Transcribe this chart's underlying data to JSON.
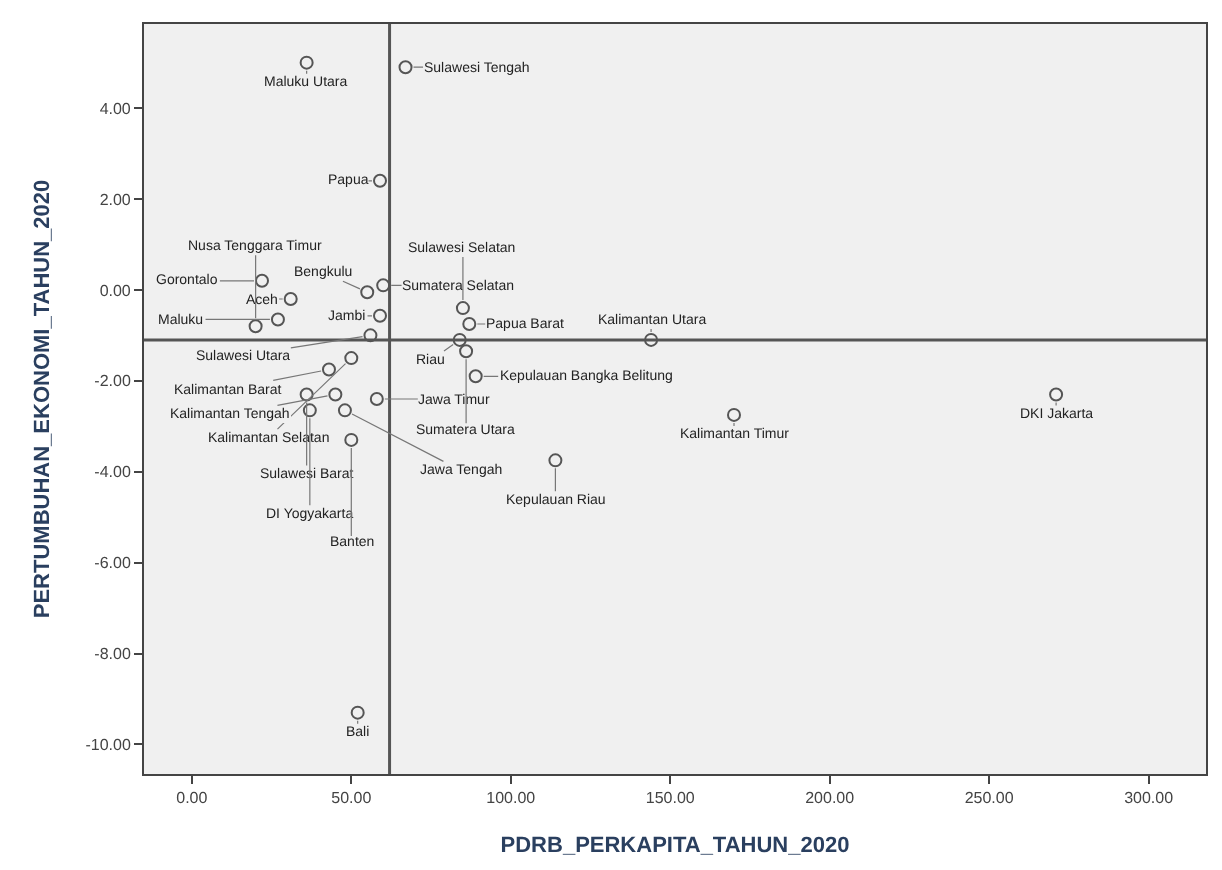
{
  "chart_data": {
    "type": "scatter",
    "xlabel": "PDRB_PERKAPITA_TAHUN_2020",
    "ylabel": "PERTUMBUHAN_EKONOMI_TAHUN_2020",
    "x": [
      36,
      67,
      59,
      22,
      55,
      60,
      31,
      85,
      59,
      27,
      20,
      56,
      84,
      144,
      43,
      50,
      86,
      45,
      89,
      36,
      37,
      48,
      58,
      170,
      271,
      114,
      50,
      52,
      87
    ],
    "values": [
      5.0,
      4.9,
      2.4,
      0.2,
      -0.05,
      0.1,
      -0.2,
      -0.4,
      -0.57,
      -0.65,
      -0.8,
      -1.0,
      -1.1,
      -1.1,
      -1.75,
      -1.5,
      -1.35,
      -2.3,
      -1.9,
      -2.3,
      -2.65,
      -2.65,
      -2.4,
      -2.75,
      -2.3,
      -3.75,
      -3.3,
      -9.3,
      -0.75
    ],
    "value_labels": [
      "Maluku Utara",
      "Sulawesi Tengah",
      "Papua",
      "Gorontalo",
      "Bengkulu",
      "Sumatera Selatan",
      "Aceh",
      "Sulawesi Selatan",
      "Jambi",
      "Maluku",
      "Nusa Tenggara Timur",
      "Sulawesi Utara",
      "Riau",
      "Kalimantan Utara",
      "Kalimantan Barat",
      "Kalimantan Selatan",
      "Sumatera Utara",
      "Kalimantan Tengah",
      "Kepulauan Bangka Belitung",
      "Sulawesi Barat",
      "DI Yogyakarta",
      "Jawa Tengah",
      "Jawa Timur",
      "Kalimantan Timur",
      "DKI Jakarta",
      "Kepulauan Riau",
      "Banten",
      "Bali",
      "Papua Barat"
    ],
    "color": "#555555",
    "marker": "circle",
    "xlim": [
      -15,
      318
    ],
    "ylim": [
      -10.65,
      5.85
    ],
    "xticks": [
      {
        "value": 0,
        "label": "0.00"
      },
      {
        "value": 50,
        "label": "50.00"
      },
      {
        "value": 100,
        "label": "100.00"
      },
      {
        "value": 150,
        "label": "150.00"
      },
      {
        "value": 200,
        "label": "200.00"
      },
      {
        "value": 250,
        "label": "250.00"
      },
      {
        "value": 300,
        "label": "300.00"
      }
    ],
    "yticks": [
      {
        "value": 4,
        "label": "4.00"
      },
      {
        "value": 2,
        "label": "2.00"
      },
      {
        "value": 0,
        "label": "0.00"
      },
      {
        "value": -2,
        "label": "-2.00"
      },
      {
        "value": -4,
        "label": "-4.00"
      },
      {
        "value": -6,
        "label": "-6.00"
      },
      {
        "value": -8,
        "label": "-8.00"
      },
      {
        "value": -10,
        "label": "-10.00"
      }
    ],
    "ref_lines": [
      {
        "axis": "x",
        "value": 62,
        "color": "#555555"
      },
      {
        "axis": "y",
        "value": -1.1,
        "color": "#555555"
      }
    ],
    "grid": false,
    "legend": false
  }
}
